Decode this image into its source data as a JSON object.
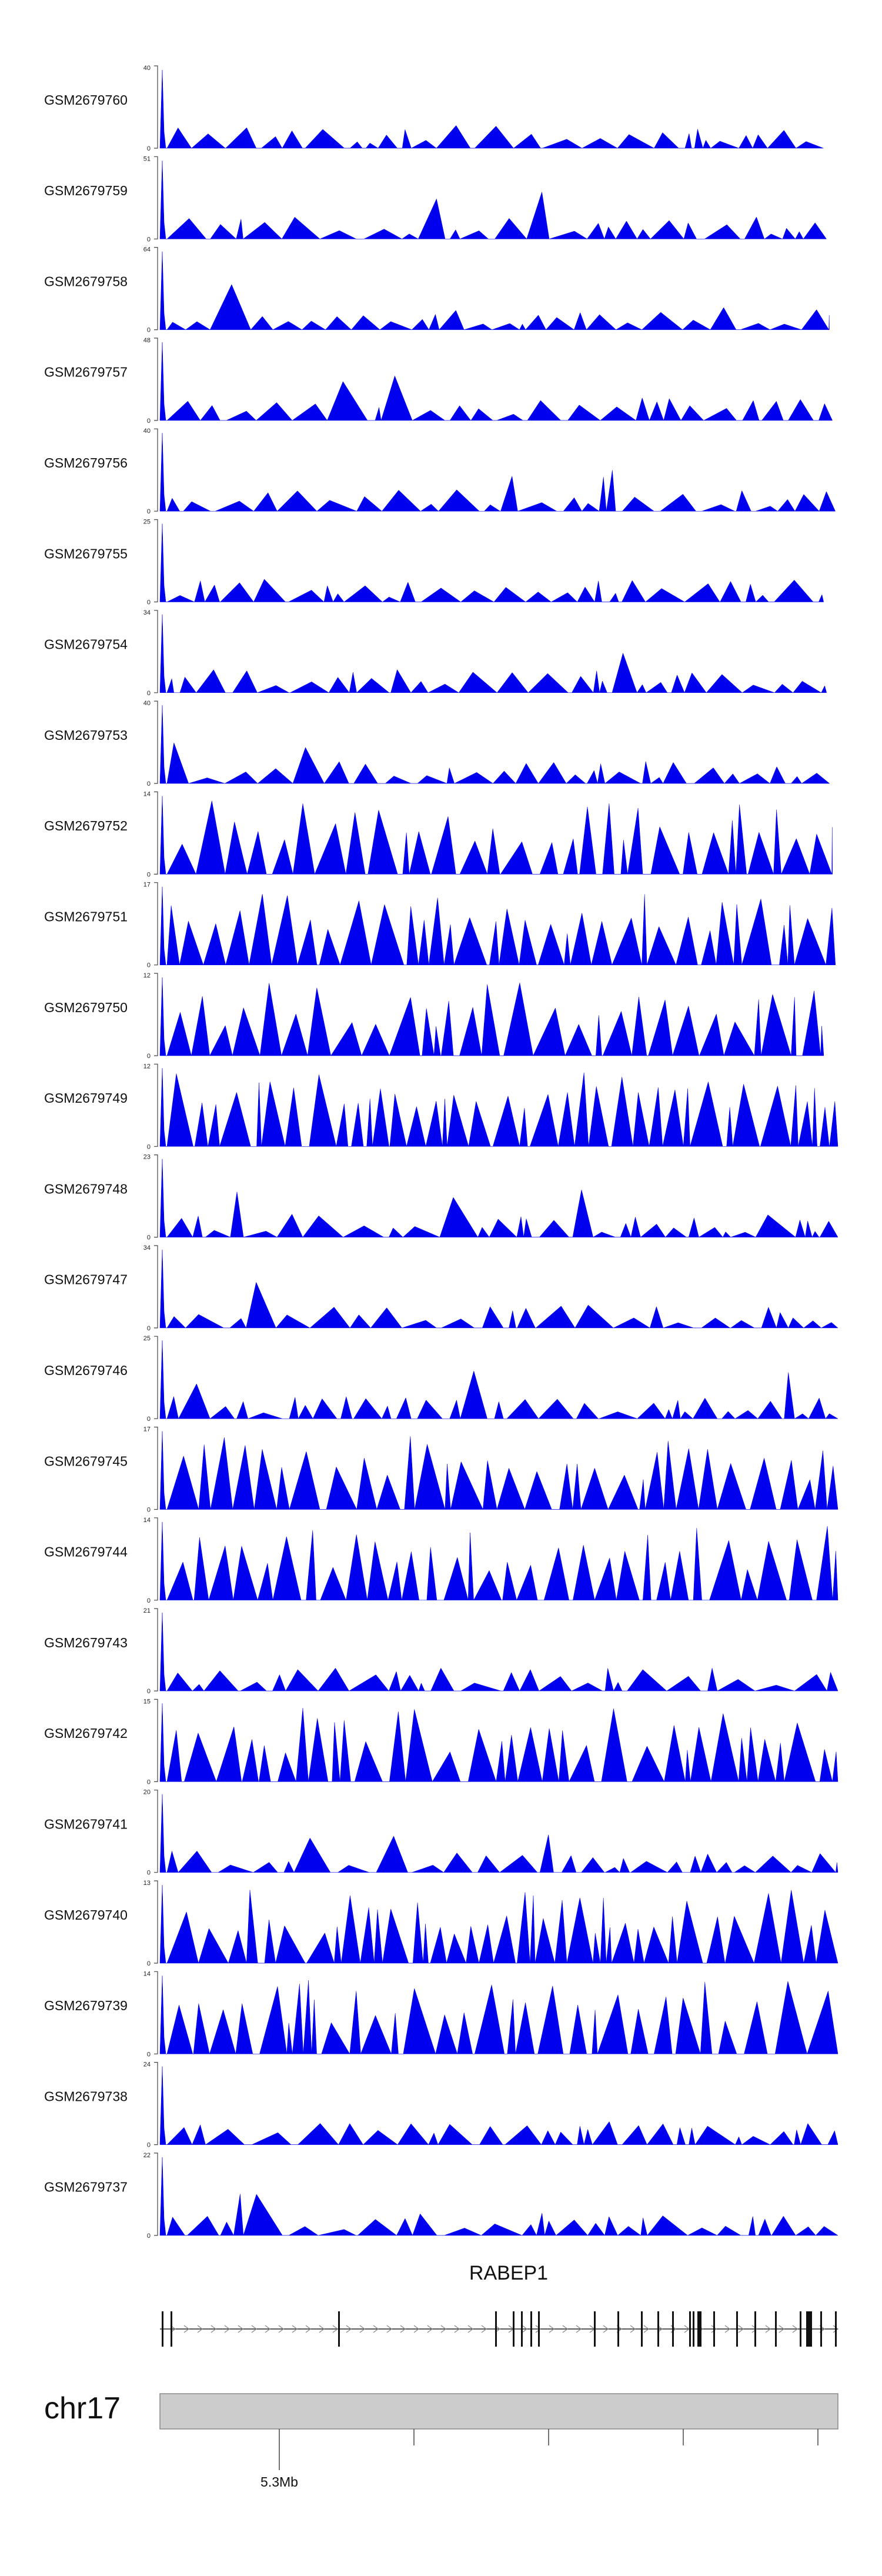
{
  "chart_data": {
    "type": "area",
    "fill_color": "#0000ee",
    "tracks": [
      {
        "name": "GSM2679760",
        "ymax": "40"
      },
      {
        "name": "GSM2679759",
        "ymax": "51"
      },
      {
        "name": "GSM2679758",
        "ymax": "64"
      },
      {
        "name": "GSM2679757",
        "ymax": "48"
      },
      {
        "name": "GSM2679756",
        "ymax": "40"
      },
      {
        "name": "GSM2679755",
        "ymax": "25"
      },
      {
        "name": "GSM2679754",
        "ymax": "34"
      },
      {
        "name": "GSM2679753",
        "ymax": "40"
      },
      {
        "name": "GSM2679752",
        "ymax": "14"
      },
      {
        "name": "GSM2679751",
        "ymax": "17"
      },
      {
        "name": "GSM2679750",
        "ymax": "12"
      },
      {
        "name": "GSM2679749",
        "ymax": "12"
      },
      {
        "name": "GSM2679748",
        "ymax": "23"
      },
      {
        "name": "GSM2679747",
        "ymax": "34"
      },
      {
        "name": "GSM2679746",
        "ymax": "25"
      },
      {
        "name": "GSM2679745",
        "ymax": "17"
      },
      {
        "name": "GSM2679744",
        "ymax": "14"
      },
      {
        "name": "GSM2679743",
        "ymax": "21"
      },
      {
        "name": "GSM2679742",
        "ymax": "15"
      },
      {
        "name": "GSM2679741",
        "ymax": "20"
      },
      {
        "name": "GSM2679740",
        "ymax": "13"
      },
      {
        "name": "GSM2679739",
        "ymax": "14"
      },
      {
        "name": "GSM2679738",
        "ymax": "24"
      },
      {
        "name": "GSM2679737",
        "ymax": "22"
      }
    ],
    "y_min_label": "0",
    "gene": {
      "name": "RABEP1",
      "strand": "+"
    },
    "chromosome": "chr17",
    "x_tick_label": "5.3Mb"
  }
}
